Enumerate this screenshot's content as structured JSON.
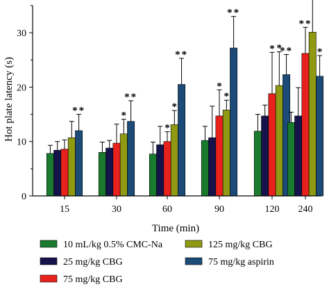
{
  "chart_data": {
    "type": "bar",
    "xlabel": "Time (min)",
    "ylabel": "Hot plate latency (s)",
    "ylim": [
      0,
      35
    ],
    "yticks": [
      0,
      10,
      20,
      30
    ],
    "categories": [
      "15",
      "30",
      "60",
      "90",
      "120",
      "240"
    ],
    "series": [
      {
        "name": "10 mL/kg 0.5% CMC-Na",
        "color": "#1a7a2e",
        "values": [
          7.8,
          8.0,
          7.7,
          10.2,
          11.9,
          13.5
        ],
        "errors": [
          1.5,
          1.9,
          2.2,
          2.6,
          3.1,
          1.9
        ],
        "sig": [
          "",
          "",
          "",
          "",
          "",
          ""
        ]
      },
      {
        "name": "25 mg/kg CBG",
        "color": "#15134a",
        "values": [
          8.4,
          8.8,
          9.4,
          10.7,
          14.7,
          14.7
        ],
        "errors": [
          1.6,
          1.4,
          3.4,
          5.8,
          2.0,
          5.2
        ],
        "sig": [
          "",
          "",
          "",
          "",
          "",
          ""
        ]
      },
      {
        "name": "75 mg/kg CBG",
        "color": "#e8211d",
        "values": [
          8.6,
          9.7,
          10.0,
          14.7,
          18.8,
          26.2
        ],
        "errors": [
          1.7,
          3.5,
          1.8,
          4.8,
          7.6,
          4.8
        ],
        "sig": [
          "",
          "",
          "*",
          "*",
          "*",
          "**"
        ]
      },
      {
        "name": "125 mg/kg CBG",
        "color": "#8f9a12",
        "values": [
          10.7,
          11.4,
          13.1,
          15.8,
          20.3,
          30.1
        ],
        "errors": [
          3.0,
          2.7,
          2.6,
          1.8,
          6.2,
          6.6
        ],
        "sig": [
          "",
          "*",
          "*",
          "*",
          "*",
          "**"
        ]
      },
      {
        "name": "75 mg/kg aspirin",
        "color": "#1c4b78",
        "values": [
          12.0,
          13.7,
          20.5,
          27.2,
          22.3,
          22.0
        ],
        "errors": [
          3.0,
          3.8,
          4.8,
          5.8,
          3.7,
          3.8
        ],
        "sig": [
          "**",
          "**",
          "**",
          "**",
          "**",
          "*"
        ]
      }
    ],
    "legend_position": "bottom"
  }
}
